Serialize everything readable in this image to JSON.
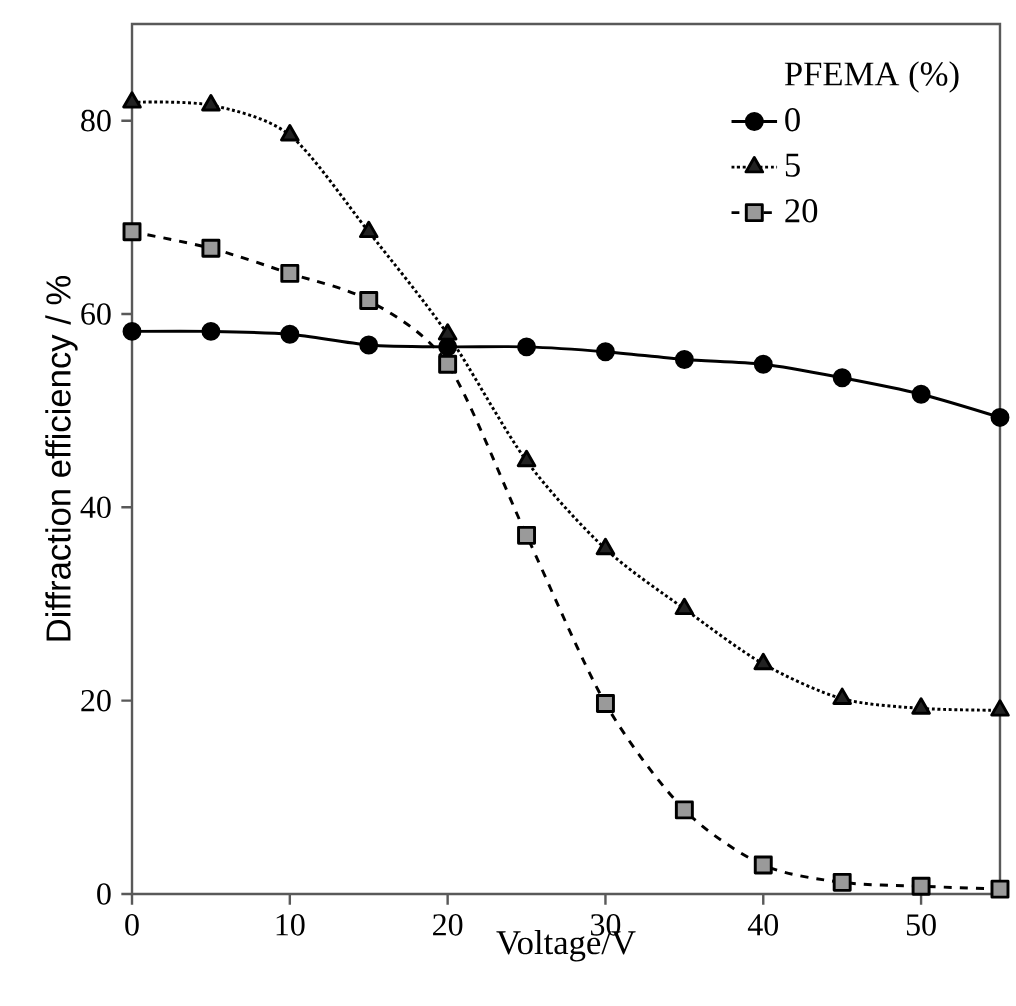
{
  "chart_data": {
    "type": "line",
    "xlabel": "Voltage/V",
    "ylabel": "Diffraction efficiency / %",
    "legend_title": "PFEMA (%)",
    "x": [
      0,
      5,
      10,
      15,
      20,
      25,
      30,
      35,
      40,
      45,
      50,
      55
    ],
    "xlim": [
      0,
      55
    ],
    "ylim": [
      0,
      90
    ],
    "xticks": [
      0,
      10,
      20,
      30,
      40,
      50
    ],
    "yticks": [
      0,
      20,
      40,
      60,
      80
    ],
    "legend": "top right",
    "grid": false,
    "series": [
      {
        "name": "0",
        "color": "#000000",
        "marker": "circle",
        "line_style": "solid",
        "values": [
          58.2,
          58.2,
          57.9,
          56.8,
          56.6,
          56.6,
          56.1,
          55.3,
          54.8,
          53.4,
          51.7,
          49.3
        ]
      },
      {
        "name": "5",
        "color": "#222222",
        "marker": "triangle",
        "line_style": "dotted",
        "values": [
          81.9,
          81.6,
          78.5,
          68.5,
          57.9,
          44.8,
          35.7,
          29.5,
          23.8,
          20.2,
          19.2,
          19.0
        ]
      },
      {
        "name": "20",
        "color": "#9a9a9a",
        "marker": "square",
        "line_style": "dashed",
        "values": [
          68.5,
          66.8,
          64.2,
          61.4,
          54.8,
          37.1,
          19.7,
          8.7,
          3.0,
          1.2,
          0.8,
          0.5
        ]
      }
    ]
  }
}
